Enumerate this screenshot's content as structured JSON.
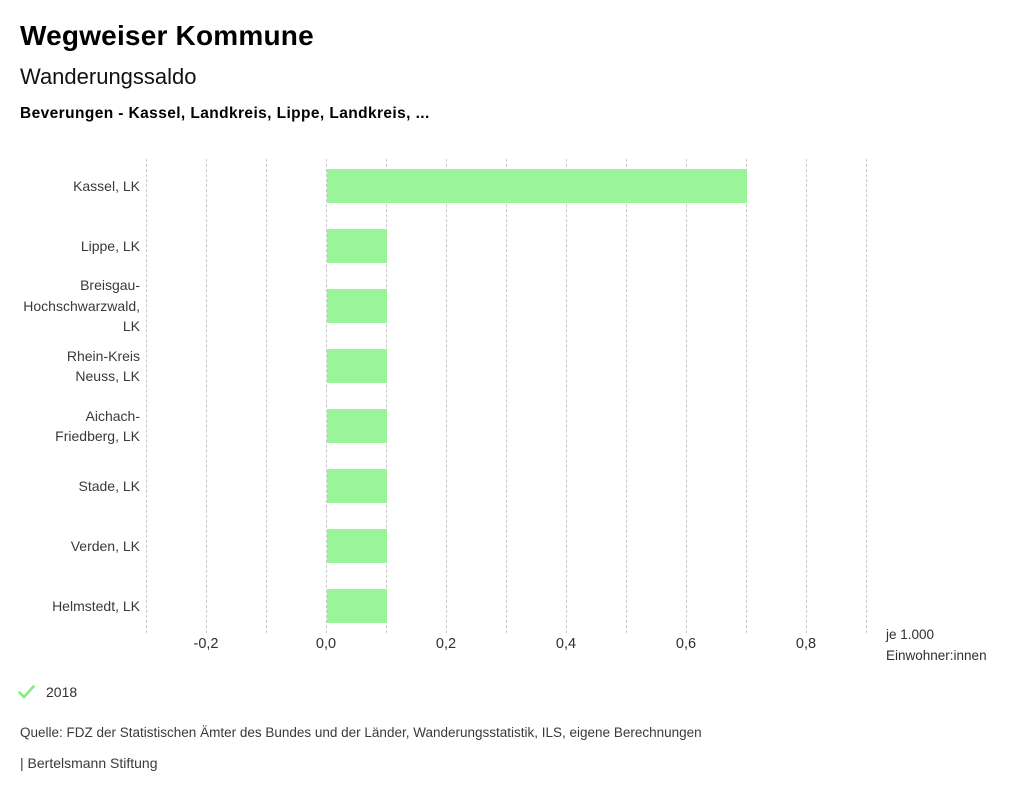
{
  "header": {
    "app_title": "Wegweiser Kommune",
    "indicator_title": "Wanderungssaldo",
    "selection_title": "Beverungen - Kassel, Landkreis, Lippe, Landkreis, ..."
  },
  "chart_data": {
    "type": "bar",
    "orientation": "horizontal",
    "title": "Wanderungssaldo",
    "subtitle": "Beverungen - Kassel, Landkreis, Lippe, Landkreis, ...",
    "xlabel": "je 1.000 Einwohner:innen",
    "unit_lines": [
      "je 1.000",
      "Einwohner:innen"
    ],
    "categories": [
      "Kassel, LK",
      "Lippe, LK",
      "Breisgau-Hochschwarzwald, LK",
      "Rhein-Kreis Neuss, LK",
      "Aichach-Friedberg, LK",
      "Stade, LK",
      "Verden, LK",
      "Helmstedt, LK"
    ],
    "label_lines": [
      [
        "Kassel, LK"
      ],
      [
        "Lippe, LK"
      ],
      [
        "Breisgau-",
        "Hochschwarzwald,",
        "LK"
      ],
      [
        "Rhein-Kreis",
        "Neuss, LK"
      ],
      [
        "Aichach-",
        "Friedberg, LK"
      ],
      [
        "Stade, LK"
      ],
      [
        "Verden, LK"
      ],
      [
        "Helmstedt, LK"
      ]
    ],
    "values": [
      0.7,
      0.1,
      0.1,
      0.1,
      0.1,
      0.1,
      0.1,
      0.1
    ],
    "series_year": "2018",
    "xlim": [
      -0.3,
      0.9
    ],
    "grid_step": 0.1,
    "x_ticks": [
      -0.2,
      0.0,
      0.2,
      0.4,
      0.6,
      0.8
    ],
    "x_tick_labels": [
      "-0,2",
      "0,0",
      "0,2",
      "0,4",
      "0,6",
      "0,8"
    ],
    "grid": "vertical-dashed",
    "legend_position": "bottom-left"
  },
  "legend": {
    "year_label": "2018",
    "check_icon": "check-icon"
  },
  "footer": {
    "source": "Quelle: FDZ der Statistischen Ämter des Bundes und der Länder, Wanderungsstatistik, ILS, eigene Berechnungen",
    "attribution": "| Bertelsmann Stiftung"
  },
  "colors": {
    "bar": "#9af49a",
    "check": "#86e986",
    "grid": "#c9c9c9",
    "heading_text": "#000000",
    "body_text": "#3a3a3a"
  }
}
